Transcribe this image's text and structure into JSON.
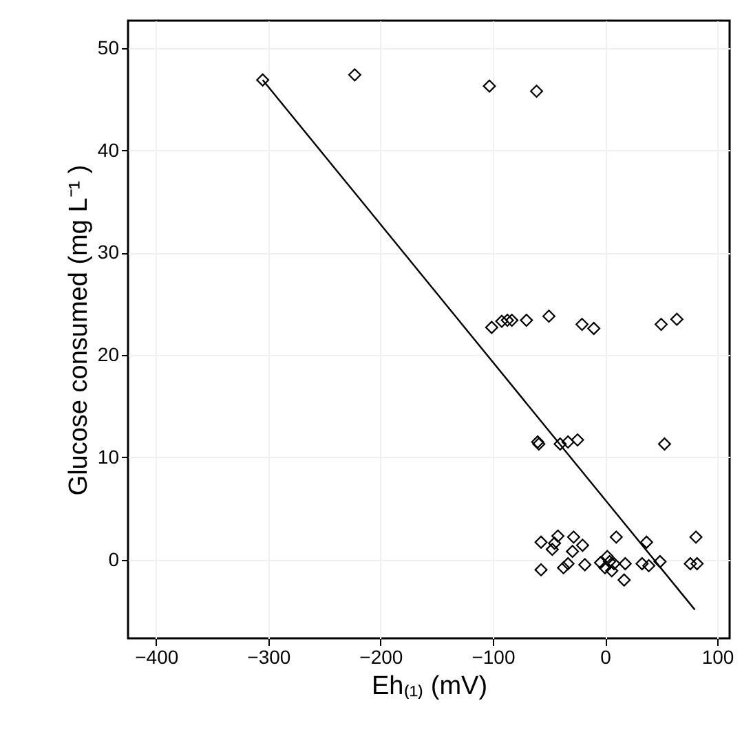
{
  "chart_data": {
    "type": "scatter",
    "xlabel": "Eh₍₁₎ (mV)",
    "ylabel": "Glucose consumed (mg L⁻¹ )",
    "xlim": [
      -425,
      111
    ],
    "ylim": [
      -7.7,
      52.7
    ],
    "xticks": [
      -400,
      -300,
      -200,
      -100,
      0,
      100
    ],
    "yticks": [
      0,
      10,
      20,
      30,
      40,
      50
    ],
    "grid": true,
    "series": [
      {
        "type": "scatter",
        "marker": "diamond",
        "color": "#000000",
        "x": [
          -305,
          -223,
          -103,
          -61,
          -101,
          -92,
          -87,
          -83,
          -70,
          -50,
          -20.5,
          -10,
          50,
          64,
          -60,
          -59,
          -40,
          -33,
          -24.5,
          53,
          -57,
          -45,
          -42,
          -47,
          -28,
          -29,
          -20,
          10,
          37,
          81,
          -57,
          -37,
          -33,
          -18,
          0,
          4,
          6,
          8,
          17,
          18,
          33,
          39,
          49,
          76,
          82,
          2,
          -4
        ],
        "values": [
          46.9,
          47.4,
          46.3,
          45.8,
          22.7,
          23.3,
          23.4,
          23.4,
          23.4,
          23.8,
          23.0,
          22.6,
          23.0,
          23.5,
          11.5,
          11.3,
          11.3,
          11.5,
          11.7,
          11.3,
          1.7,
          1.6,
          2.3,
          1.0,
          2.2,
          0.8,
          1.4,
          2.2,
          1.7,
          2.2,
          -1.0,
          -0.8,
          -0.4,
          -0.5,
          -0.8,
          -0.2,
          -1.1,
          -0.4,
          -2.0,
          -0.4,
          -0.4,
          -0.6,
          -0.2,
          -0.4,
          -0.4,
          0.3,
          -0.3
        ]
      },
      {
        "type": "line",
        "line_style": "solid",
        "color": "#000000",
        "x": [
          -305,
          80
        ],
        "values": [
          46.9,
          -4.9
        ]
      }
    ]
  }
}
